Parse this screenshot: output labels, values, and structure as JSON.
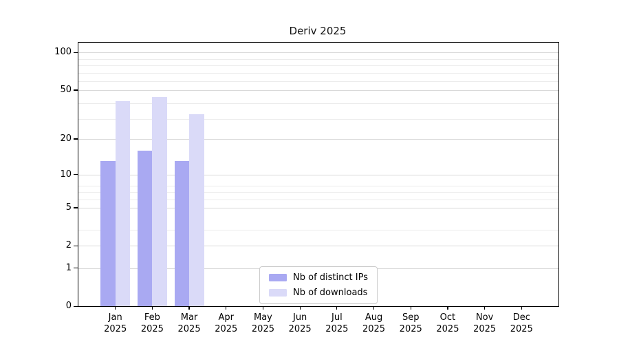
{
  "title": "Deriv 2025",
  "chart_data": {
    "type": "bar",
    "title": "Deriv 2025",
    "categories": [
      "Jan",
      "Feb",
      "Mar",
      "Apr",
      "May",
      "Jun",
      "Jul",
      "Aug",
      "Sep",
      "Oct",
      "Nov",
      "Dec"
    ],
    "category_year": "2025",
    "series": [
      {
        "name": "Nb of distinct IPs",
        "color": "#a9a9f2",
        "values": [
          13,
          16,
          13,
          0,
          0,
          0,
          0,
          0,
          0,
          0,
          0,
          0
        ]
      },
      {
        "name": "Nb of downloads",
        "color": "#dadaf8",
        "values": [
          41,
          44,
          32,
          0,
          0,
          0,
          0,
          0,
          0,
          0,
          0,
          0
        ]
      }
    ],
    "y_axis": {
      "scale": "log1p",
      "ticks": [
        0,
        1,
        2,
        5,
        10,
        20,
        50,
        100
      ],
      "max": 120,
      "minor_gridlines": [
        2,
        3,
        5,
        6,
        7,
        8,
        29,
        39,
        59,
        69,
        79,
        89
      ]
    },
    "x_axis": {
      "label_lines": 2
    },
    "legend": {
      "position": "lower center"
    },
    "grid": true,
    "colors": {
      "axis": "#000000",
      "major_grid": "#d9d9d9",
      "minor_grid": "#ececec",
      "legend_border": "#cccccc",
      "background": "#ffffff"
    }
  }
}
